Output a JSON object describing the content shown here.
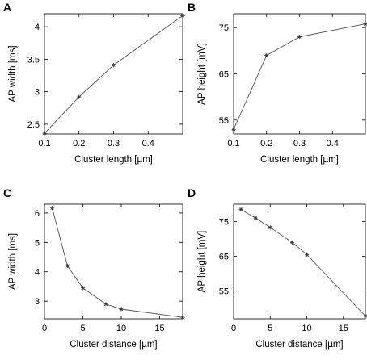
{
  "chart_data": [
    {
      "type": "line",
      "panel": "A",
      "xlabel": "Cluster length [µm]",
      "ylabel": "AP width [ms]",
      "xlim": [
        0.1,
        0.5
      ],
      "ylim": [
        2.35,
        4.2
      ],
      "xticks": [
        0.1,
        0.2,
        0.3,
        0.4
      ],
      "xtick_labels": [
        "0.1",
        "0.2",
        "0.3",
        "0.4"
      ],
      "yticks": [
        2.5,
        3,
        3.5,
        4
      ],
      "ytick_labels": [
        "2.5",
        "3",
        "3.5",
        "4"
      ],
      "x": [
        0.1,
        0.2,
        0.3,
        0.5
      ],
      "y": [
        2.36,
        2.92,
        3.41,
        4.17
      ],
      "grid": false
    },
    {
      "type": "line",
      "panel": "B",
      "xlabel": "Cluster length [µm]",
      "ylabel": "AP height [mV]",
      "xlim": [
        0.1,
        0.5
      ],
      "ylim": [
        52,
        78
      ],
      "xticks": [
        0.1,
        0.2,
        0.3,
        0.4
      ],
      "xtick_labels": [
        "0.1",
        "0.2",
        "0.3",
        "0.4"
      ],
      "yticks": [
        55,
        65,
        75
      ],
      "ytick_labels": [
        "55",
        "65",
        "75"
      ],
      "x": [
        0.1,
        0.2,
        0.3,
        0.5
      ],
      "y": [
        53.0,
        69.0,
        73.0,
        75.8
      ],
      "grid": false
    },
    {
      "type": "line",
      "panel": "C",
      "xlabel": "Cluster distance [µm]",
      "ylabel": "AP width [ms]",
      "xlim": [
        0,
        18
      ],
      "ylim": [
        2.4,
        6.3
      ],
      "xticks": [
        0,
        5,
        10,
        15
      ],
      "xtick_labels": [
        "0",
        "5",
        "10",
        "15"
      ],
      "yticks": [
        3,
        4,
        5,
        6
      ],
      "ytick_labels": [
        "3",
        "4",
        "5",
        "6"
      ],
      "x": [
        1,
        3,
        5,
        8,
        10,
        18
      ],
      "y": [
        6.17,
        4.2,
        3.45,
        2.9,
        2.73,
        2.45
      ],
      "grid": false
    },
    {
      "type": "line",
      "panel": "D",
      "xlabel": "Cluster distance [µm]",
      "ylabel": "AP height [mV]",
      "xlim": [
        0,
        18
      ],
      "ylim": [
        47,
        80
      ],
      "xticks": [
        0,
        5,
        10,
        15
      ],
      "xtick_labels": [
        "0",
        "5",
        "10",
        "15"
      ],
      "yticks": [
        55,
        65,
        75
      ],
      "ytick_labels": [
        "55",
        "65",
        "75"
      ],
      "x": [
        1,
        3,
        5,
        8,
        10,
        18
      ],
      "y": [
        78.5,
        76.0,
        73.3,
        69.0,
        65.5,
        47.8
      ],
      "grid": false
    }
  ],
  "style": {
    "line_color": "#555555",
    "marker_color": "#333333",
    "axis_color": "#000000"
  }
}
